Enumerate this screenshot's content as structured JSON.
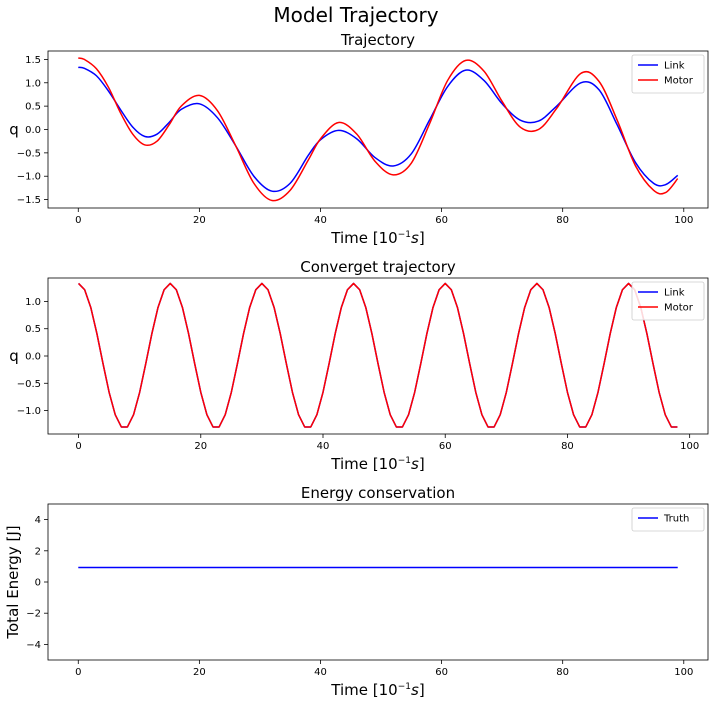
{
  "figure": {
    "title": "Model Trajectory"
  },
  "chart_data": [
    {
      "type": "line",
      "title": "Trajectory",
      "ylabel": "q",
      "xlabel_prefix": "Time [10",
      "xlabel_exp": "−1",
      "xlabel_unit": "s",
      "xlabel_suffix": "]",
      "xlim": [
        -5,
        104
      ],
      "ylim": [
        -1.68,
        1.68
      ],
      "xticks": [
        0,
        20,
        40,
        60,
        80,
        100
      ],
      "xtick_labels": [
        "0",
        "20",
        "40",
        "60",
        "80",
        "100"
      ],
      "yticks": [
        1.5,
        1.0,
        0.5,
        0.0,
        -0.5,
        -1.0,
        -1.5
      ],
      "ytick_labels": [
        "1.5",
        "1.0",
        "0.5",
        "0.0",
        "−0.5",
        "−1.0",
        "−1.5"
      ],
      "legend_position": "top-right",
      "x": [
        0,
        1,
        3,
        5,
        7,
        9,
        11,
        13,
        15,
        17,
        20,
        23,
        26,
        29,
        32,
        35,
        38,
        40,
        43,
        46,
        49,
        52,
        55,
        58,
        61,
        64,
        67,
        70,
        73,
        76,
        79,
        83,
        86,
        89,
        92,
        95,
        97,
        99
      ],
      "series": [
        {
          "name": "Link",
          "color": "#0000ff",
          "values": [
            1.33,
            1.31,
            1.15,
            0.82,
            0.42,
            0.05,
            -0.15,
            -0.1,
            0.15,
            0.43,
            0.55,
            0.25,
            -0.35,
            -1.0,
            -1.32,
            -1.15,
            -0.55,
            -0.22,
            -0.02,
            -0.2,
            -0.6,
            -0.78,
            -0.52,
            0.2,
            0.92,
            1.27,
            1.05,
            0.55,
            0.2,
            0.18,
            0.5,
            1.0,
            0.85,
            0.1,
            -0.7,
            -1.15,
            -1.18,
            -0.98
          ]
        },
        {
          "name": "Motor",
          "color": "#ff0000",
          "values": [
            1.53,
            1.5,
            1.3,
            0.9,
            0.35,
            -0.1,
            -0.33,
            -0.25,
            0.1,
            0.5,
            0.73,
            0.4,
            -0.35,
            -1.15,
            -1.52,
            -1.3,
            -0.65,
            -0.2,
            0.15,
            -0.1,
            -0.68,
            -0.97,
            -0.72,
            0.12,
            1.05,
            1.48,
            1.25,
            0.6,
            0.05,
            0.0,
            0.45,
            1.2,
            1.03,
            0.2,
            -0.77,
            -1.3,
            -1.35,
            -1.05
          ]
        }
      ]
    },
    {
      "type": "line",
      "title": "Converget trajectory",
      "ylabel": "q",
      "xlabel_prefix": "Time [10",
      "xlabel_exp": "−1",
      "xlabel_unit": "s",
      "xlabel_suffix": "]",
      "xlim": [
        -5,
        103
      ],
      "ylim": [
        -1.43,
        1.43
      ],
      "xticks": [
        0,
        20,
        40,
        60,
        80,
        100
      ],
      "xtick_labels": [
        "0",
        "20",
        "40",
        "60",
        "80",
        "100"
      ],
      "yticks": [
        1.0,
        0.5,
        0.0,
        -0.5,
        -1.0
      ],
      "ytick_labels": [
        "1.0",
        "0.5",
        "0.0",
        "−0.5",
        "−1.0"
      ],
      "legend_position": "top-right",
      "amplitude": 1.33,
      "period": 15,
      "x_end": 98,
      "series": [
        {
          "name": "Link",
          "color": "#0000ff"
        },
        {
          "name": "Motor",
          "color": "#ff0000"
        }
      ]
    },
    {
      "type": "line",
      "title": "Energy conservation",
      "ylabel": "Total Energy [J]",
      "xlabel_prefix": "Time [10",
      "xlabel_exp": "−1",
      "xlabel_unit": "s",
      "xlabel_suffix": "]",
      "xlim": [
        -5,
        104
      ],
      "ylim": [
        -5,
        5
      ],
      "xticks": [
        0,
        20,
        40,
        60,
        80,
        100
      ],
      "xtick_labels": [
        "0",
        "20",
        "40",
        "60",
        "80",
        "100"
      ],
      "yticks": [
        4,
        2,
        0,
        -2,
        -4
      ],
      "ytick_labels": [
        "4",
        "2",
        "0",
        "−2",
        "−4"
      ],
      "legend_position": "top-right",
      "x": [
        0,
        99
      ],
      "series": [
        {
          "name": "Truth",
          "color": "#0000ff",
          "values": [
            0.93,
            0.93
          ]
        }
      ]
    }
  ]
}
